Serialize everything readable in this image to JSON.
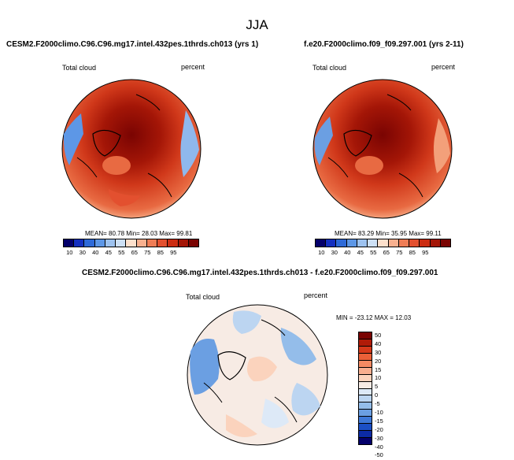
{
  "figure": {
    "season": "JJA",
    "panel_left": {
      "title": "CESM2.F2000climo.C96.C96.mg17.intel.432pes.1thrds.ch013 (yrs 1)",
      "variable": "Total cloud",
      "units": "percent",
      "stats": "MEAN=  80.78  Min=  28.03  Max=  99.81"
    },
    "panel_right": {
      "title": "f.e20.F2000climo.f09_f09.297.001 (yrs 2-11)",
      "variable": "Total cloud",
      "units": "percent",
      "stats": "MEAN=  83.29  Min=  35.95  Max=  99.11"
    },
    "panel_diff": {
      "title": "CESM2.F2000climo.C96.C96.mg17.intel.432pes.1thrds.ch013 - f.e20.F2000climo.f09_f09.297.001",
      "variable": "Total cloud",
      "units": "percent",
      "stats": "MIN = -23.12 MAX =  12.03"
    }
  },
  "chart_data": {
    "type": "heatmap",
    "projection": "north-polar-stereographic",
    "field_colorbar": {
      "ticks": [
        "10",
        "30",
        "40",
        "45",
        "55",
        "65",
        "75",
        "85",
        "95"
      ],
      "colors": [
        "#04006b",
        "#1530c0",
        "#2e6ad8",
        "#5d97e6",
        "#9dc2ef",
        "#cde0f5",
        "#fde0cc",
        "#f8b08f",
        "#ef7d56",
        "#e3502f",
        "#cc2d12",
        "#a41607",
        "#7a0402"
      ]
    },
    "diff_colorbar": {
      "ticks": [
        "50",
        "40",
        "30",
        "20",
        "15",
        "10",
        "5",
        "0",
        "-5",
        "-10",
        "-15",
        "-20",
        "-30",
        "-40",
        "-50"
      ],
      "colors": [
        "#7a0402",
        "#b01b08",
        "#d5391a",
        "#ea6038",
        "#f48a63",
        "#f8ae8f",
        "#fbd3bd",
        "#f7ebe4",
        "#dde9f7",
        "#bcd5f1",
        "#94bdea",
        "#6b9fe2",
        "#3e78d8",
        "#1b4fc6",
        "#0c2ba4",
        "#04006b"
      ]
    }
  }
}
